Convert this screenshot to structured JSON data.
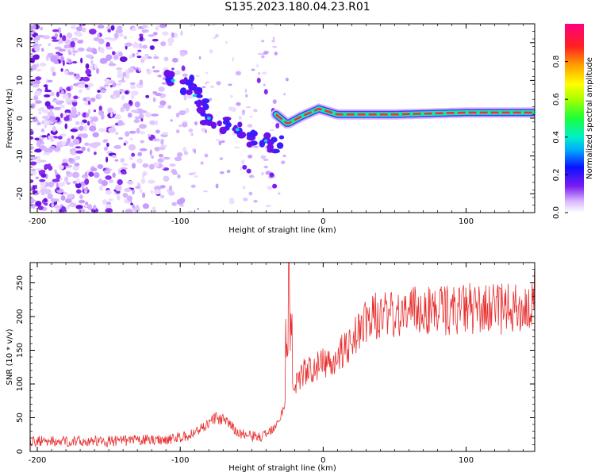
{
  "figure_title": "S135.2023.180.04.23.R01",
  "chart_data": [
    {
      "type": "heatmap",
      "xlabel": "Height of straight line (km)",
      "ylabel": "Frequency (Hz)",
      "xlim": [
        -205,
        148
      ],
      "ylim": [
        -25,
        25
      ],
      "x_ticks": [
        -200,
        -100,
        0,
        100
      ],
      "y_ticks": [
        -20,
        -10,
        0,
        10,
        20
      ],
      "colorbar": {
        "label": "Normalized spectral amplitude",
        "range": [
          0.0,
          1.0
        ],
        "ticks": [
          0.0,
          0.2,
          0.4,
          0.6,
          0.8
        ],
        "colormap": "rainbow-white-to-magenta"
      },
      "features": {
        "noise_region_x": [
          -205,
          -95
        ],
        "descending_track": [
          {
            "x": -105,
            "y": 10
          },
          {
            "x": -95,
            "y": 9
          },
          {
            "x": -90,
            "y": 6
          },
          {
            "x": -85,
            "y": 3
          },
          {
            "x": -80,
            "y": 0
          },
          {
            "x": -70,
            "y": -2
          },
          {
            "x": -60,
            "y": -3
          },
          {
            "x": -50,
            "y": -5
          },
          {
            "x": -40,
            "y": -6
          },
          {
            "x": -33,
            "y": -7
          }
        ],
        "flat_band": [
          {
            "x": -33,
            "y": 1
          },
          {
            "x": -25,
            "y": -1.5
          },
          {
            "x": -15,
            "y": 0.5
          },
          {
            "x": -3,
            "y": 2.5
          },
          {
            "x": 10,
            "y": 1
          },
          {
            "x": 50,
            "y": 1
          },
          {
            "x": 100,
            "y": 1.5
          },
          {
            "x": 148,
            "y": 1.5
          }
        ]
      }
    },
    {
      "type": "line",
      "xlabel": "Height of straight line (km)",
      "ylabel": "SNR (10 * v/v)",
      "xlim": [
        -205,
        148
      ],
      "ylim": [
        0,
        280
      ],
      "x_ticks": [
        -200,
        -100,
        0,
        100
      ],
      "y_ticks": [
        0,
        50,
        100,
        150,
        200,
        250
      ],
      "series": [
        {
          "color": "#e83030",
          "envelope": [
            {
              "x": -205,
              "y": 15
            },
            {
              "x": -150,
              "y": 15
            },
            {
              "x": -110,
              "y": 18
            },
            {
              "x": -95,
              "y": 22
            },
            {
              "x": -85,
              "y": 35
            },
            {
              "x": -75,
              "y": 50
            },
            {
              "x": -68,
              "y": 45
            },
            {
              "x": -60,
              "y": 28
            },
            {
              "x": -50,
              "y": 22
            },
            {
              "x": -42,
              "y": 22
            },
            {
              "x": -35,
              "y": 35
            },
            {
              "x": -28,
              "y": 60
            },
            {
              "x": -22,
              "y": 95
            },
            {
              "x": -15,
              "y": 115
            },
            {
              "x": -5,
              "y": 125
            },
            {
              "x": 5,
              "y": 135
            },
            {
              "x": 15,
              "y": 150
            },
            {
              "x": 25,
              "y": 180
            },
            {
              "x": 35,
              "y": 200
            },
            {
              "x": 50,
              "y": 205
            },
            {
              "x": 75,
              "y": 210
            },
            {
              "x": 100,
              "y": 210
            },
            {
              "x": 148,
              "y": 212
            }
          ],
          "spike": {
            "x": -24,
            "y": 280
          }
        }
      ]
    }
  ]
}
